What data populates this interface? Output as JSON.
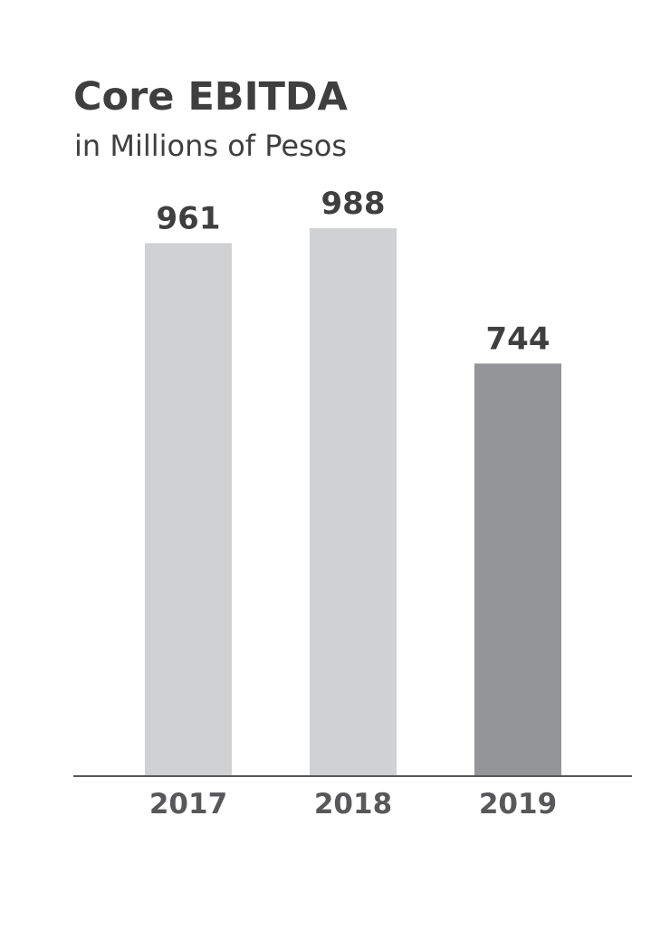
{
  "chart_data": {
    "type": "bar",
    "title": "Core EBITDA",
    "subtitle": "in Millions of Pesos",
    "categories": [
      "2017",
      "2018",
      "2019"
    ],
    "values": [
      961,
      988,
      744
    ],
    "ylim": [
      0,
      988
    ],
    "grid": false,
    "legend": "none",
    "colors": {
      "bar": "#d0d1d3",
      "highlight_bar": "#939598",
      "axis": "#58585a",
      "text": "#3f3f40"
    },
    "highlight_category": "2019"
  }
}
